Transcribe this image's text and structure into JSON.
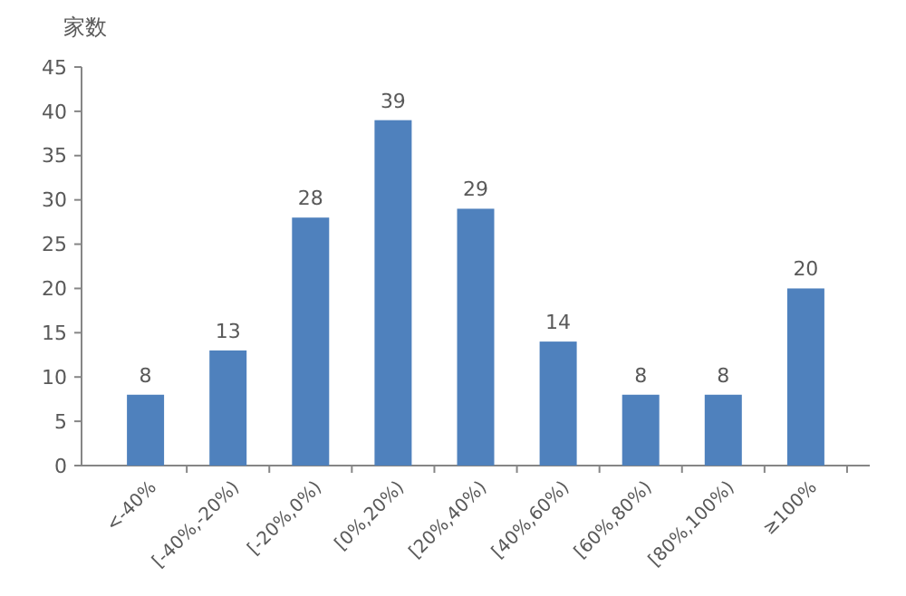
{
  "chart_data": {
    "type": "bar",
    "ylabel": "家数",
    "categories": [
      "<-40%",
      "[-40%,-20%)",
      "[-20%,0%)",
      "[0%,20%)",
      "[20%,40%)",
      "[40%,60%)",
      "[60%,80%)",
      "[80%,100%)",
      "≥100%"
    ],
    "values": [
      8,
      13,
      28,
      39,
      29,
      14,
      8,
      8,
      20
    ],
    "color": "#4f81bd",
    "ylim": [
      0,
      45
    ],
    "yticks": [
      0,
      5,
      10,
      15,
      20,
      25,
      30,
      35,
      40,
      45
    ],
    "data_labels": true,
    "grid": false
  }
}
